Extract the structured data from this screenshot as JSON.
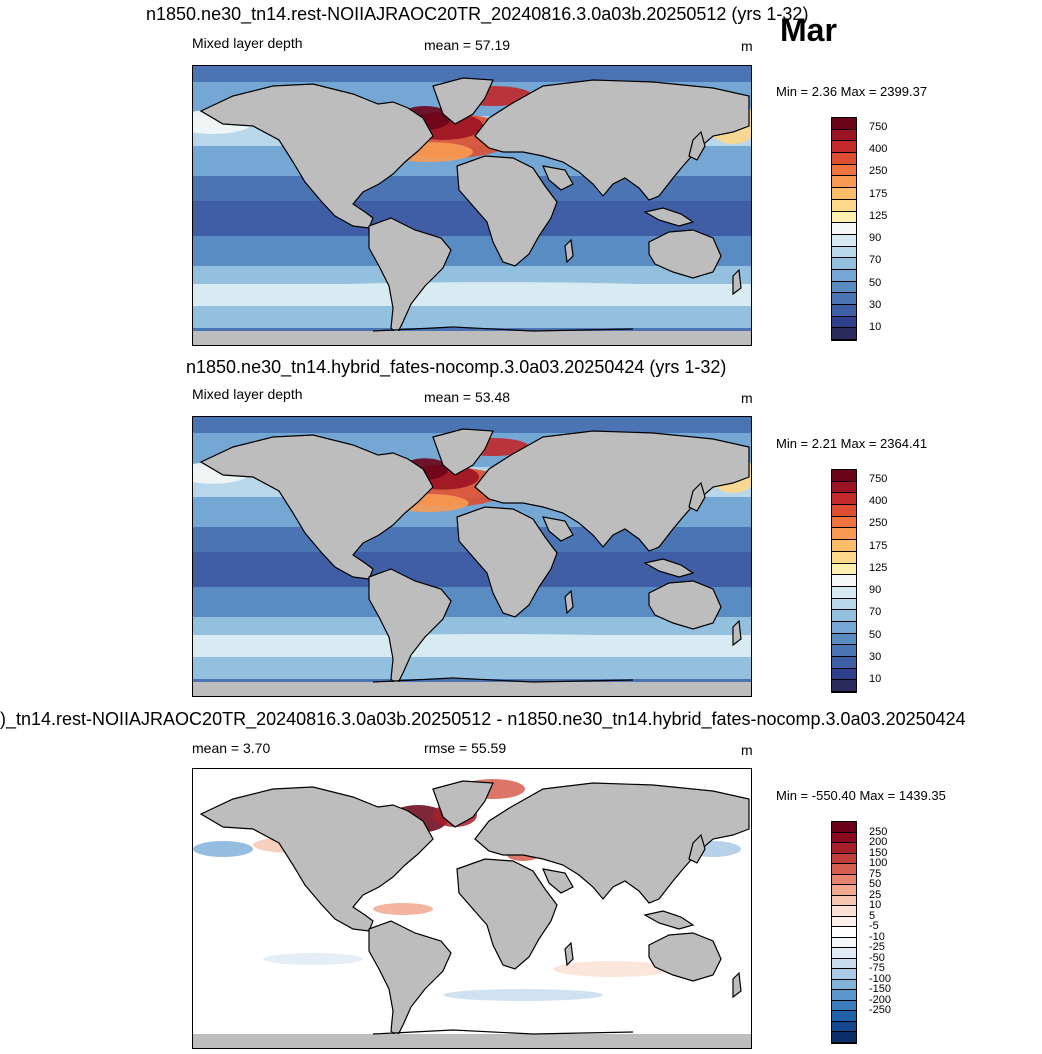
{
  "month": "Mar",
  "colors": {
    "land": "#bdbdbd",
    "coast": "#000000",
    "seq_bins": [
      "#2a2a5c",
      "#2e3f8c",
      "#3f5ea5",
      "#4a74b4",
      "#5a8cc4",
      "#74a7d3",
      "#94c0e0",
      "#b8d7ea",
      "#d8eaf2",
      "#f5f8f6",
      "#fcefb0",
      "#fdd88a",
      "#fcbc68",
      "#f89a53",
      "#ef7440",
      "#dd4e30",
      "#c2292a",
      "#9b1322",
      "#6a0419"
    ],
    "div_bins": [
      "#0c2f6a",
      "#14488e",
      "#1f62aa",
      "#3a7dbd",
      "#5b97cc",
      "#82b1da",
      "#a9c9e5",
      "#c8dcee",
      "#e0ebf5",
      "#f4f8fb",
      "#ffffff",
      "#fdf0eb",
      "#fbe0d3",
      "#f7c6b0",
      "#f1a88e",
      "#e7846d",
      "#d65e4f",
      "#c13d39",
      "#a81f2a",
      "#8c0a1f",
      "#6a0019"
    ]
  },
  "panels": [
    {
      "title": "n1850.ne30_tn14.rest-NOIIAJRAOC20TR_20240816.3.0a03b.20250512 (yrs 1-32)",
      "left_label": "Mixed layer depth",
      "center_label": "mean =  57.19",
      "units": "m",
      "minmax": "Min =   2.36 Max = 2399.37",
      "colorbar_labels": [
        "750",
        "400",
        "250",
        "175",
        "125",
        "90",
        "70",
        "50",
        "30",
        "10"
      ],
      "style": "seq",
      "level": 1.0
    },
    {
      "title": "n1850.ne30_tn14.hybrid_fates-nocomp.3.0a03.20250424 (yrs 1-32)",
      "left_label": "Mixed layer depth",
      "center_label": "mean =  53.48",
      "units": "m",
      "minmax": "Min =   2.21 Max = 2364.41",
      "colorbar_labels": [
        "750",
        "400",
        "250",
        "175",
        "125",
        "90",
        "70",
        "50",
        "30",
        "10"
      ],
      "style": "seq",
      "level": 0.9
    },
    {
      "title": ")_tn14.rest-NOIIAJRAOC20TR_20240816.3.0a03b.20250512 - n1850.ne30_tn14.hybrid_fates-nocomp.3.0a03.20250424",
      "left_label": "mean =   3.70",
      "center_label": "rmse =  55.59",
      "units": "m",
      "minmax": "Min = -550.40 Max = 1439.35",
      "colorbar_labels": [
        "250",
        "200",
        "150",
        "100",
        "75",
        "50",
        "25",
        "10",
        "5",
        "-5",
        "-10",
        "-25",
        "-50",
        "-75",
        "-100",
        "-150",
        "-200",
        "-250"
      ],
      "style": "div",
      "level": 1.0
    }
  ]
}
